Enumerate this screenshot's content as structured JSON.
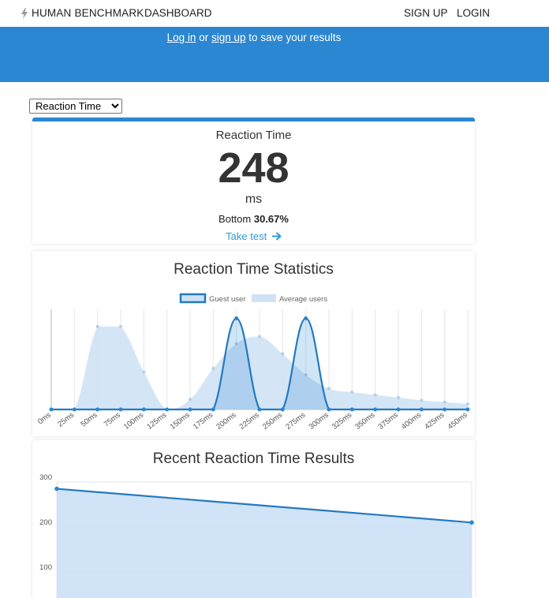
{
  "navbar": {
    "brand": "HUMAN BENCHMARK",
    "dashboard": "DASHBOARD",
    "signup": "SIGN UP",
    "login": "LOGIN",
    "brand_icon": "lightning-bolt-icon"
  },
  "hero": {
    "login_link": "Log in",
    "or": " or ",
    "signup_link": "sign up",
    "suffix": " to save your results"
  },
  "test_select": {
    "selected": "Reaction Time"
  },
  "score": {
    "label": "Reaction Time",
    "value": "248",
    "unit": "ms",
    "percentile_prefix": "Bottom",
    "percentile_value": "30.67%",
    "take_test": "Take test",
    "take_test_icon": "arrow-right-icon"
  },
  "colors": {
    "accent": "#2b87d1",
    "link": "#2b9bd8",
    "guest_line": "#2479c2",
    "avg_fill": "#cfe2f5"
  },
  "stats": {
    "title": "Reaction Time Statistics"
  },
  "recent": {
    "title": "Recent Reaction Time Results"
  },
  "chart_data": [
    {
      "type": "area",
      "title": "Reaction Time Statistics",
      "categories": [
        "0ms",
        "25ms",
        "50ms",
        "75ms",
        "100ms",
        "125ms",
        "150ms",
        "175ms",
        "200ms",
        "225ms",
        "250ms",
        "275ms",
        "300ms",
        "325ms",
        "350ms",
        "375ms",
        "400ms",
        "425ms",
        "450ms"
      ],
      "series": [
        {
          "name": "Guest user",
          "values": [
            0,
            0,
            0,
            0,
            0,
            0,
            0,
            0,
            1,
            0,
            0,
            1,
            0,
            0,
            0,
            0,
            0,
            0,
            0
          ]
        },
        {
          "name": "Average users",
          "values": [
            0,
            0,
            0.91,
            0.91,
            0.41,
            0,
            0.11,
            0.45,
            0.72,
            0.8,
            0.61,
            0.38,
            0.23,
            0.19,
            0.16,
            0.13,
            0.1,
            0.08,
            0.06
          ]
        }
      ],
      "ylim": [
        0,
        1.1
      ],
      "legend": "top",
      "grid": true
    },
    {
      "type": "line",
      "title": "Recent Reaction Time Results",
      "x": [
        1,
        2
      ],
      "values": [
        285,
        210
      ],
      "yticks": [
        "300",
        "200",
        "100"
      ],
      "ylim": [
        0,
        300
      ],
      "grid": true
    }
  ]
}
